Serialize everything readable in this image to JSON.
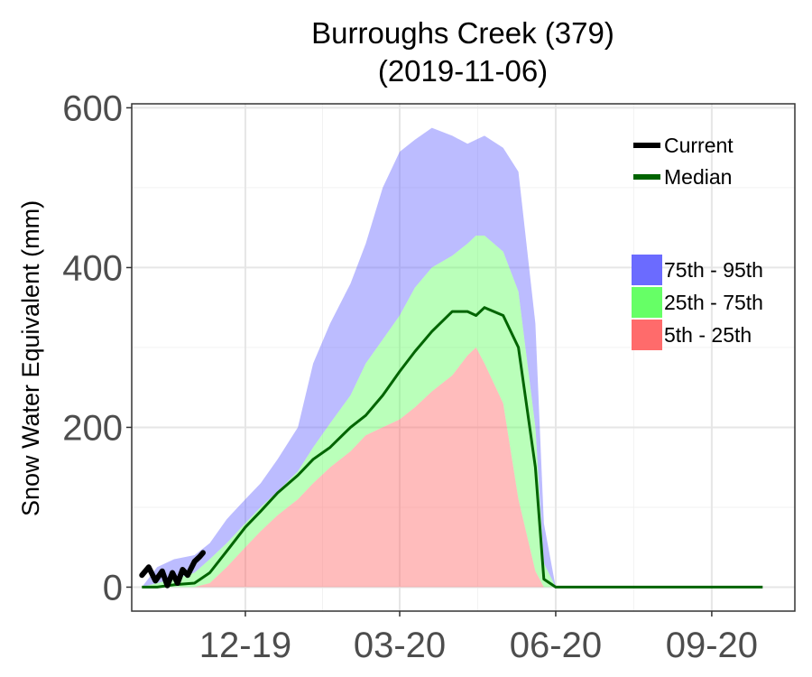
{
  "chart_data": {
    "type": "area",
    "title": "Burroughs Creek (379)",
    "subtitle": "(2019-11-06)",
    "ylabel": "Snow Water Equivalent (mm)",
    "xlabel": "",
    "ylim": [
      -30,
      605
    ],
    "xlim": [
      "2019-09-25",
      "2020-10-20"
    ],
    "yticks": [
      0,
      200,
      400,
      600
    ],
    "xticks": [
      {
        "date": "2019-12-01",
        "label": "12-19"
      },
      {
        "date": "2020-03-01",
        "label": "03-20"
      },
      {
        "date": "2020-06-01",
        "label": "06-20"
      },
      {
        "date": "2020-09-01",
        "label": "09-20"
      }
    ],
    "grid": true,
    "legend_position": "top-right",
    "colors": {
      "current": "#000000",
      "median": "#006400",
      "p75_95": "#6b6bff",
      "p25_75": "#66ff66",
      "p5_25": "#ff6b6b"
    },
    "dates": [
      "2019-10-01",
      "2019-10-10",
      "2019-10-20",
      "2019-11-01",
      "2019-11-10",
      "2019-11-20",
      "2019-12-01",
      "2019-12-10",
      "2019-12-20",
      "2020-01-01",
      "2020-01-10",
      "2020-01-20",
      "2020-02-01",
      "2020-02-10",
      "2020-02-20",
      "2020-03-01",
      "2020-03-10",
      "2020-03-20",
      "2020-04-01",
      "2020-04-10",
      "2020-04-15",
      "2020-04-20",
      "2020-05-01",
      "2020-05-10",
      "2020-05-20",
      "2020-05-25",
      "2020-06-01",
      "2020-06-10",
      "2020-06-20",
      "2020-07-01",
      "2020-10-01"
    ],
    "p95": [
      0,
      25,
      35,
      40,
      55,
      85,
      110,
      130,
      160,
      200,
      280,
      330,
      380,
      430,
      500,
      545,
      560,
      575,
      565,
      555,
      560,
      565,
      550,
      520,
      330,
      80,
      0,
      0,
      0,
      0,
      0
    ],
    "p75": [
      0,
      5,
      10,
      18,
      35,
      55,
      80,
      100,
      120,
      145,
      175,
      205,
      240,
      280,
      310,
      340,
      375,
      400,
      415,
      430,
      440,
      440,
      420,
      370,
      200,
      30,
      0,
      0,
      0,
      0,
      0
    ],
    "median": [
      0,
      0,
      3,
      5,
      18,
      45,
      75,
      95,
      118,
      140,
      160,
      175,
      200,
      215,
      240,
      270,
      295,
      320,
      345,
      345,
      340,
      350,
      340,
      300,
      150,
      10,
      0,
      0,
      0,
      0,
      0
    ],
    "p25": [
      0,
      0,
      0,
      0,
      5,
      25,
      50,
      70,
      90,
      110,
      130,
      150,
      170,
      190,
      200,
      210,
      225,
      245,
      265,
      290,
      300,
      280,
      230,
      110,
      20,
      0,
      0,
      0,
      0,
      0,
      0
    ],
    "p5": [
      0,
      0,
      0,
      0,
      0,
      0,
      0,
      0,
      0,
      0,
      0,
      0,
      0,
      0,
      0,
      0,
      0,
      0,
      0,
      0,
      0,
      0,
      0,
      0,
      0,
      0,
      0,
      0,
      0,
      0,
      0
    ],
    "series": [
      {
        "name": "Current",
        "x": [
          "2019-10-01",
          "2019-10-05",
          "2019-10-09",
          "2019-10-13",
          "2019-10-16",
          "2019-10-19",
          "2019-10-22",
          "2019-10-25",
          "2019-10-28",
          "2019-11-01",
          "2019-11-04",
          "2019-11-06"
        ],
        "values": [
          15,
          25,
          8,
          20,
          2,
          18,
          5,
          22,
          15,
          32,
          38,
          43
        ]
      }
    ],
    "legend": {
      "lines": [
        {
          "label": "Current",
          "color": "#000000"
        },
        {
          "label": "Median",
          "color": "#006400"
        }
      ],
      "bands": [
        {
          "label": "75th - 95th",
          "color": "#6b6bff"
        },
        {
          "label": "25th - 75th",
          "color": "#66ff66"
        },
        {
          "label": "5th - 25th",
          "color": "#ff6b6b"
        }
      ]
    }
  }
}
